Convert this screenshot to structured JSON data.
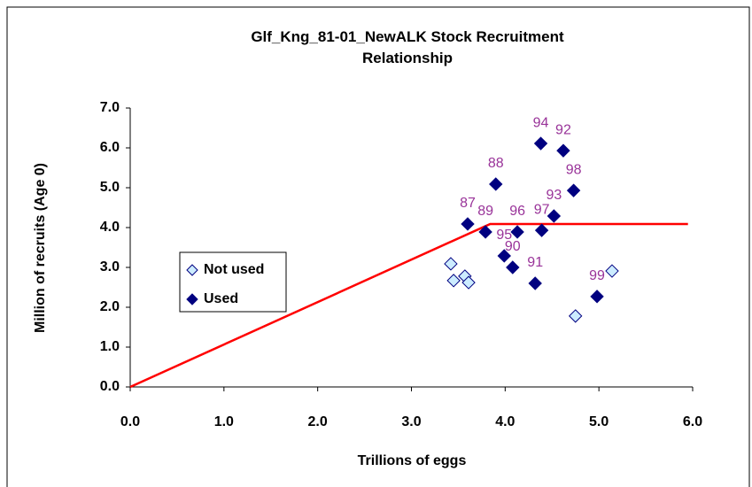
{
  "chart_data": {
    "type": "scatter",
    "title": "Glf_Kng_81-01_NewALK Stock Recruitment Relationship",
    "x_label": "Trillions of eggs",
    "y_label": "Million of recruits (Age 0)",
    "xlim": [
      0,
      6
    ],
    "ylim": [
      0,
      7
    ],
    "xticks": [
      {
        "value": 0,
        "label": "0.0"
      },
      {
        "value": 1,
        "label": "1.0"
      },
      {
        "value": 2,
        "label": "2.0"
      },
      {
        "value": 3,
        "label": "3.0"
      },
      {
        "value": 4,
        "label": "4.0"
      },
      {
        "value": 5,
        "label": "5.0"
      },
      {
        "value": 6,
        "label": "6.0"
      }
    ],
    "yticks": [
      {
        "value": 0,
        "label": "0.0"
      },
      {
        "value": 1,
        "label": "1.0"
      },
      {
        "value": 2,
        "label": "2.0"
      },
      {
        "value": 3,
        "label": "3.0"
      },
      {
        "value": 4,
        "label": "4.0"
      },
      {
        "value": 5,
        "label": "5.0"
      },
      {
        "value": 6,
        "label": "6.0"
      },
      {
        "value": 7,
        "label": "7.0"
      }
    ],
    "series": [
      {
        "name": "Not used",
        "color": "#ccecff",
        "x": [
          3.42,
          3.45,
          3.57,
          3.61,
          4.75,
          5.14
        ],
        "values": [
          3.09,
          2.67,
          2.78,
          2.62,
          1.78,
          2.91
        ]
      },
      {
        "name": "Used",
        "color": "#000080",
        "x": [
          3.6,
          3.9,
          3.79,
          3.99,
          4.08,
          4.32,
          4.13,
          4.38,
          4.39,
          4.52,
          4.62,
          4.73,
          4.98
        ],
        "values": [
          4.09,
          5.09,
          3.89,
          3.29,
          3.0,
          2.6,
          3.89,
          6.11,
          3.93,
          4.29,
          5.93,
          4.93,
          2.27
        ],
        "labels": [
          "87",
          "88",
          "89",
          "95",
          "90",
          "91",
          "96",
          "94",
          "97",
          "93",
          "92",
          "98",
          "99"
        ]
      }
    ],
    "fit_line": {
      "color": "#ff0000",
      "x": [
        0,
        3.84,
        5.95
      ],
      "values": [
        0,
        4.09,
        4.09
      ]
    },
    "label_color": "#993399"
  }
}
